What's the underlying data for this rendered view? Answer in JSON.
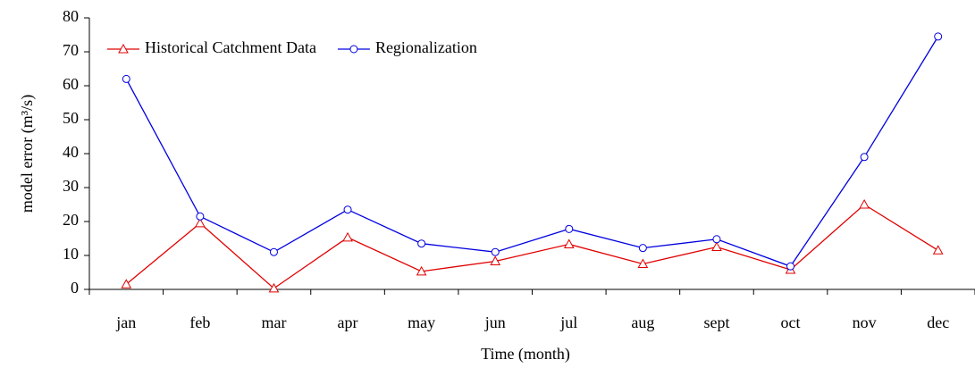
{
  "chart_data": {
    "type": "line",
    "x_label": "Time (month)",
    "y_label": "model error (m³/s)",
    "categories": [
      "jan",
      "feb",
      "mar",
      "apr",
      "may",
      "jun",
      "jul",
      "aug",
      "sept",
      "oct",
      "nov",
      "dec"
    ],
    "series": [
      {
        "name": "Historical Catchment Data",
        "color": "#e00000",
        "marker": "triangle",
        "values": [
          1.5,
          19.5,
          0.3,
          15.3,
          5.3,
          8.3,
          13.3,
          7.5,
          12.5,
          5.8,
          25,
          11.5
        ]
      },
      {
        "name": "Regionalization",
        "color": "#0000e0",
        "marker": "circle",
        "values": [
          62,
          21.5,
          11,
          23.5,
          13.5,
          11,
          17.8,
          12.2,
          14.8,
          6.8,
          39,
          74.5
        ]
      }
    ],
    "ylim": [
      0,
      80
    ],
    "yticks": [
      0,
      10,
      20,
      30,
      40,
      50,
      60,
      70,
      80
    ],
    "legend": "upper-left",
    "grid": false
  }
}
